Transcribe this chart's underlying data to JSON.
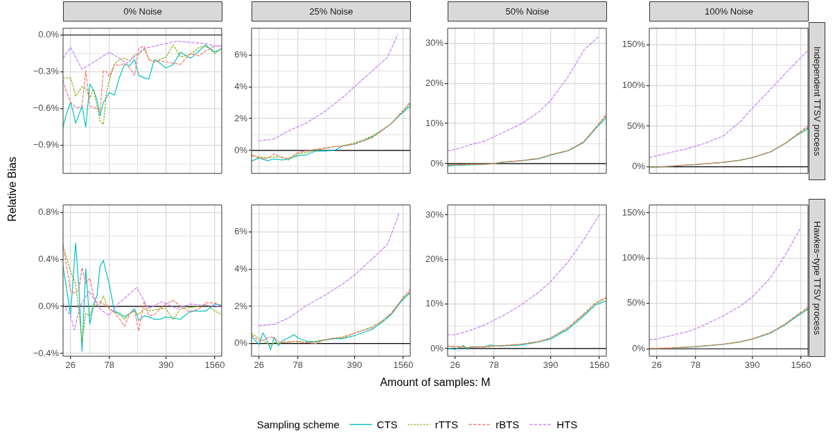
{
  "chart_data": [
    {
      "type": "line",
      "title": "0% Noise",
      "ylabel": "Relative Bias",
      "legend_title": "Sampling scheme",
      "legend": "bottom",
      "grid": true,
      "log": "x",
      "tick_labels": "y",
      "xlim": [
        21,
        1900
      ],
      "xticks": [
        26,
        {
          "value": 45,
          "label": null
        },
        78,
        {
          "value": 174,
          "label": null
        },
        390,
        {
          "value": 780,
          "label": null
        },
        1560
      ],
      "ylim": [
        -1.13,
        0.055
      ],
      "yticks": [
        {
          "value": -1.05,
          "label": null
        },
        {
          "value": -0.9,
          "label": "−0.9%"
        },
        {
          "value": -0.75,
          "label": null
        },
        {
          "value": -0.6,
          "label": "−0.6%"
        },
        {
          "value": -0.45,
          "label": null
        },
        {
          "value": -0.3,
          "label": "−0.3%"
        },
        {
          "value": -0.15,
          "label": null
        },
        {
          "value": 0,
          "label": "0.0%"
        }
      ],
      "ref_lines": [
        {
          "axis": "y",
          "value": 0,
          "color": "#000000"
        }
      ],
      "x": [
        21,
        23,
        26,
        28,
        30,
        33,
        36,
        40,
        45,
        50,
        55,
        60,
        66,
        72,
        78,
        90,
        105,
        120,
        140,
        160,
        180,
        210,
        240,
        280,
        330,
        390,
        480,
        590,
        780,
        1000,
        1200,
        1560,
        1900
      ],
      "series": [
        {
          "name": "CTS",
          "color": "#00bfc4",
          "line_style": "solid",
          "values": [
            -0.75,
            -0.65,
            -0.55,
            -0.63,
            -0.72,
            -0.65,
            -0.58,
            -0.75,
            -0.4,
            -0.45,
            -0.53,
            -0.66,
            -0.55,
            -0.51,
            -0.47,
            -0.49,
            -0.34,
            -0.24,
            -0.25,
            -0.2,
            -0.33,
            -0.35,
            -0.36,
            -0.2,
            -0.23,
            -0.27,
            -0.24,
            -0.14,
            -0.19,
            -0.13,
            -0.08,
            -0.14,
            -0.11
          ]
        },
        {
          "name": "rTTS",
          "color": "#7cae00",
          "line_style": "dotted",
          "values": [
            -0.35,
            -0.35,
            -0.35,
            -0.42,
            -0.5,
            -0.46,
            -0.42,
            -0.44,
            -0.51,
            -0.44,
            -0.58,
            -0.7,
            -0.73,
            -0.47,
            -0.37,
            -0.24,
            -0.2,
            -0.19,
            -0.21,
            -0.16,
            -0.16,
            -0.11,
            -0.2,
            -0.22,
            -0.2,
            -0.18,
            -0.08,
            -0.18,
            -0.16,
            -0.1,
            -0.09,
            -0.15,
            -0.11
          ]
        },
        {
          "name": "rBTS",
          "color": "#f8766d",
          "line_style": "dashed",
          "values": [
            -0.37,
            -0.46,
            -0.55,
            -0.57,
            -0.59,
            -0.59,
            -0.58,
            -0.29,
            -0.58,
            -0.59,
            -0.6,
            -0.62,
            -0.29,
            -0.3,
            -0.34,
            -0.24,
            -0.25,
            -0.23,
            -0.27,
            -0.33,
            -0.11,
            -0.09,
            -0.2,
            -0.22,
            -0.21,
            -0.22,
            -0.23,
            -0.24,
            -0.15,
            -0.17,
            -0.13,
            -0.09,
            -0.09
          ]
        },
        {
          "name": "HTS",
          "color": "#c77cff",
          "line_style": "dashed",
          "x": [
            21,
            26,
            36,
            78,
            130,
            210,
            530,
            780,
            1200,
            1560,
            1900
          ],
          "values": [
            -0.19,
            -0.1,
            -0.28,
            -0.14,
            -0.23,
            -0.11,
            -0.05,
            -0.06,
            -0.07,
            -0.09,
            -0.09
          ]
        }
      ]
    },
    {
      "type": "line",
      "title": "25% Noise",
      "grid": true,
      "log": "x",
      "tick_labels": "y",
      "xlim": [
        21,
        1900
      ],
      "xticks": [
        26,
        {
          "value": 45,
          "label": null
        },
        78,
        {
          "value": 174,
          "label": null
        },
        390,
        {
          "value": 780,
          "label": null
        },
        1560
      ],
      "ylim": [
        -1.44,
        7.67
      ],
      "yticks": [
        {
          "value": -1,
          "label": null
        },
        {
          "value": 0,
          "label": "0%"
        },
        {
          "value": 1,
          "label": null
        },
        {
          "value": 2,
          "label": "2%"
        },
        {
          "value": 3,
          "label": null
        },
        {
          "value": 4,
          "label": "4%"
        },
        {
          "value": 5,
          "label": null
        },
        {
          "value": 6,
          "label": "6%"
        },
        {
          "value": 7,
          "label": null
        }
      ],
      "ref_lines": [
        {
          "axis": "y",
          "value": 0,
          "color": "#000000"
        }
      ],
      "x": [
        21,
        26,
        33,
        40,
        50,
        60,
        78,
        100,
        130,
        170,
        220,
        280,
        390,
        500,
        650,
        850,
        1100,
        1400,
        1560,
        1900
      ],
      "series": [
        {
          "color": "#00bfc4",
          "line_style": "solid",
          "values": [
            -0.67,
            -0.47,
            -0.64,
            -0.53,
            -0.6,
            -0.53,
            -0.33,
            -0.27,
            -0.03,
            -0.03,
            0,
            0.29,
            0.4,
            0.6,
            0.87,
            1.27,
            1.67,
            2.2,
            2.4,
            2.8
          ]
        },
        {
          "color": "#7cae00",
          "line_style": "dotted",
          "values": [
            -0.27,
            -0.4,
            -0.47,
            -0.4,
            -0.4,
            -0.6,
            -0.2,
            -0.13,
            0.03,
            0.13,
            0.24,
            0.29,
            0.47,
            0.67,
            0.91,
            1.27,
            1.67,
            2.24,
            2.47,
            2.93
          ]
        },
        {
          "color": "#f8766d",
          "line_style": "dashed",
          "values": [
            -0.33,
            -0.47,
            -0.51,
            -0.2,
            -0.47,
            -0.51,
            -0.13,
            -0.03,
            0.07,
            0.16,
            0.24,
            0.27,
            0.4,
            0.6,
            0.8,
            1.23,
            1.67,
            2.27,
            2.53,
            3.04
          ]
        },
        {
          "color": "#c77cff",
          "line_style": "dashed",
          "x": [
            26,
            40,
            60,
            100,
            170,
            280,
            390,
            650,
            1000,
            1330
          ],
          "values": [
            0.6,
            0.73,
            1.23,
            1.73,
            2.47,
            3.33,
            4.0,
            5.0,
            5.87,
            7.27
          ]
        }
      ]
    },
    {
      "type": "line",
      "title": "50% Noise",
      "grid": true,
      "log": "x",
      "tick_labels": "y",
      "xlim": [
        21,
        1900
      ],
      "xticks": [
        26,
        {
          "value": 45,
          "label": null
        },
        78,
        {
          "value": 174,
          "label": null
        },
        390,
        {
          "value": 780,
          "label": null
        },
        1560
      ],
      "ylim": [
        -2.44,
        33.7
      ],
      "yticks": [
        {
          "value": 0,
          "label": "0%"
        },
        {
          "value": 5,
          "label": null
        },
        {
          "value": 10,
          "label": "10%"
        },
        {
          "value": 15,
          "label": null
        },
        {
          "value": 20,
          "label": "20%"
        },
        {
          "value": 25,
          "label": null
        },
        {
          "value": 30,
          "label": "30%"
        }
      ],
      "ref_lines": [
        {
          "axis": "y",
          "value": 0,
          "color": "#000000"
        }
      ],
      "x": [
        21,
        26,
        40,
        60,
        78,
        100,
        170,
        280,
        390,
        650,
        1000,
        1400,
        1900
      ],
      "series": [
        {
          "color": "#00bfc4",
          "line_style": "solid",
          "values": [
            -0.6,
            -0.45,
            -0.3,
            -0.2,
            0.0,
            0.35,
            0.7,
            1.2,
            2.1,
            3.2,
            5.3,
            8.7,
            11.4
          ]
        },
        {
          "color": "#7cae00",
          "line_style": "dotted",
          "values": [
            -0.4,
            -0.3,
            -0.2,
            -0.15,
            0.0,
            0.4,
            0.75,
            1.3,
            2.2,
            3.3,
            5.4,
            8.9,
            11.9
          ]
        },
        {
          "color": "#f8766d",
          "line_style": "dashed",
          "values": [
            -0.3,
            -0.3,
            -0.2,
            -0.15,
            0.0,
            0.4,
            0.75,
            1.3,
            2.2,
            3.3,
            5.5,
            9.0,
            12.3
          ]
        },
        {
          "color": "#c77cff",
          "line_style": "dashed",
          "x": [
            21,
            26,
            40,
            60,
            100,
            170,
            280,
            390,
            650,
            1000,
            1500
          ],
          "values": [
            3.2,
            3.5,
            4.7,
            5.6,
            7.7,
            9.9,
            12.9,
            15.7,
            21.8,
            28.2,
            31.5
          ]
        }
      ]
    },
    {
      "type": "line",
      "title": "100% Noise",
      "annotations": [
        "Independent TTSV process"
      ],
      "grid": true,
      "log": "x",
      "tick_labels": "y",
      "xlim": [
        21,
        1900
      ],
      "xticks": [
        26,
        {
          "value": 45,
          "label": null
        },
        78,
        {
          "value": 174,
          "label": null
        },
        390,
        {
          "value": 780,
          "label": null
        },
        1560
      ],
      "ylim": [
        -8.1,
        170.5
      ],
      "yticks": [
        {
          "value": 0,
          "label": "0%"
        },
        {
          "value": 25,
          "label": null
        },
        {
          "value": 50,
          "label": "50%"
        },
        {
          "value": 75,
          "label": null
        },
        {
          "value": 100,
          "label": "100%"
        },
        {
          "value": 125,
          "label": null
        },
        {
          "value": 150,
          "label": "150%"
        }
      ],
      "ref_lines": [
        {
          "axis": "y",
          "value": 0,
          "color": "#000000"
        }
      ],
      "x": [
        21,
        26,
        40,
        60,
        78,
        100,
        170,
        280,
        390,
        650,
        1000,
        1400,
        1900
      ],
      "series": [
        {
          "color": "#00bfc4",
          "line_style": "solid",
          "values": [
            -0.5,
            -0.3,
            0.8,
            2.0,
            2.7,
            3.6,
            5.4,
            8.1,
            11.2,
            18.1,
            28.7,
            39.2,
            46.8
          ]
        },
        {
          "color": "#7cae00",
          "line_style": "dotted",
          "values": [
            -0.3,
            -0.2,
            0.9,
            2.1,
            2.8,
            3.7,
            5.5,
            8.2,
            11.4,
            18.3,
            29.0,
            39.8,
            48.3
          ]
        },
        {
          "color": "#f8766d",
          "line_style": "dashed",
          "values": [
            0.0,
            0.0,
            1.0,
            2.2,
            2.9,
            3.8,
            5.6,
            8.3,
            11.5,
            18.5,
            29.2,
            40.2,
            50.4
          ]
        },
        {
          "color": "#c77cff",
          "line_style": "dashed",
          "x": [
            21,
            26,
            40,
            60,
            100,
            170,
            280,
            390,
            650,
            1000,
            1400,
            1900
          ],
          "values": [
            11.2,
            13.6,
            18.1,
            22.0,
            28.7,
            37.7,
            55.8,
            72,
            95,
            115,
            130,
            143
          ]
        }
      ]
    },
    {
      "type": "line",
      "grid": true,
      "log": "x",
      "xlim": [
        21,
        1900
      ],
      "xticks": [
        26,
        {
          "value": 45,
          "label": null
        },
        78,
        {
          "value": 174,
          "label": null
        },
        390,
        {
          "value": 780,
          "label": null
        },
        1560
      ],
      "ylim": [
        -0.424,
        0.862
      ],
      "yticks": [
        {
          "value": -0.4,
          "label": "−0.4%"
        },
        {
          "value": -0.2,
          "label": null
        },
        {
          "value": 0,
          "label": "0.0%"
        },
        {
          "value": 0.2,
          "label": null
        },
        {
          "value": 0.4,
          "label": "0.4%"
        },
        {
          "value": 0.6,
          "label": null
        },
        {
          "value": 0.8,
          "label": "0.8%"
        }
      ],
      "ref_lines": [
        {
          "axis": "y",
          "value": 0,
          "color": "#000000"
        }
      ],
      "x": [
        21,
        26,
        30,
        33,
        36,
        40,
        45,
        50,
        55,
        60,
        66,
        72,
        78,
        90,
        105,
        120,
        140,
        160,
        180,
        210,
        240,
        280,
        330,
        390,
        480,
        590,
        780,
        1000,
        1200,
        1560,
        1900
      ],
      "series": [
        {
          "color": "#00bfc4",
          "line_style": "solid",
          "values": [
            0.34,
            -0.07,
            0.54,
            0.15,
            -0.38,
            0.32,
            -0.15,
            0.02,
            0.09,
            0.34,
            0.39,
            0.28,
            0.19,
            -0.04,
            -0.06,
            -0.09,
            -0.06,
            -0.02,
            -0.12,
            -0.08,
            -0.09,
            -0.11,
            -0.11,
            -0.09,
            -0.1,
            -0.11,
            -0.04,
            -0.04,
            -0.04,
            0.02,
            0.01
          ]
        },
        {
          "color": "#7cae00",
          "line_style": "dotted",
          "values": [
            0.51,
            0.3,
            0.19,
            -0.04,
            -0.3,
            -0.06,
            -0.08,
            0.02,
            0.01,
            0.02,
            0.09,
            0.02,
            -0.02,
            -0.05,
            -0.07,
            -0.11,
            -0.06,
            -0.04,
            -0.07,
            -0.02,
            -0.04,
            -0.03,
            -0.02,
            -0.02,
            -0.11,
            -0.02,
            -0.01,
            0.0,
            0.02,
            -0.04,
            -0.07
          ]
        },
        {
          "color": "#f8766d",
          "line_style": "dashed",
          "values": [
            0.53,
            0.13,
            0.11,
            0.15,
            0.33,
            0.2,
            0.24,
            0.08,
            0.03,
            0.04,
            0.02,
            0.01,
            -0.02,
            -0.05,
            -0.11,
            -0.17,
            -0.06,
            -0.04,
            -0.21,
            0.04,
            -0.08,
            -0.07,
            -0.02,
            0.02,
            0.05,
            0.0,
            -0.05,
            -0.02,
            0.03,
            0.03,
            0.0
          ]
        },
        {
          "color": "#c77cff",
          "line_style": "dashed",
          "x": [
            21,
            26,
            29,
            34,
            44,
            60,
            77,
            100,
            170,
            236,
            350,
            530,
            780,
            1150,
            1900
          ],
          "values": [
            0.02,
            -0.08,
            -0.2,
            0.0,
            0.13,
            -0.02,
            -0.08,
            0.02,
            0.16,
            -0.02,
            0.04,
            -0.02,
            0.02,
            0.01,
            0.0
          ]
        }
      ]
    },
    {
      "type": "line",
      "xlabel": "Amount of samples: M",
      "grid": true,
      "log": "x",
      "xlim": [
        21,
        1900
      ],
      "xticks": [
        26,
        {
          "value": 45,
          "label": null
        },
        78,
        {
          "value": 174,
          "label": null
        },
        390,
        {
          "value": 780,
          "label": null
        },
        1560
      ],
      "ylim": [
        -0.69,
        7.46
      ],
      "yticks": [
        {
          "value": 0,
          "label": "0%"
        },
        {
          "value": 1,
          "label": null
        },
        {
          "value": 2,
          "label": "2%"
        },
        {
          "value": 3,
          "label": null
        },
        {
          "value": 4,
          "label": "4%"
        },
        {
          "value": 5,
          "label": null
        },
        {
          "value": 6,
          "label": "6%"
        },
        {
          "value": 7,
          "label": null
        }
      ],
      "ref_lines": [
        {
          "axis": "y",
          "value": 0,
          "color": "#000000"
        }
      ],
      "x": [
        21,
        26,
        29,
        33,
        36,
        40,
        45,
        50,
        60,
        70,
        78,
        100,
        130,
        170,
        220,
        280,
        390,
        500,
        650,
        850,
        1100,
        1400,
        1560,
        1900
      ],
      "series": [
        {
          "color": "#00bfc4",
          "line_style": "solid",
          "values": [
            0.36,
            -0.06,
            0.57,
            0.12,
            -0.36,
            0.33,
            -0.12,
            0.12,
            0.3,
            0.48,
            0.3,
            0.12,
            0.08,
            0.18,
            0.26,
            0.26,
            0.42,
            0.59,
            0.77,
            1.13,
            1.54,
            2.14,
            2.38,
            2.73
          ]
        },
        {
          "color": "#7cae00",
          "line_style": "dotted",
          "values": [
            0.55,
            0.25,
            0.15,
            0.0,
            -0.12,
            0.05,
            0.0,
            0.05,
            0.05,
            0.1,
            0.12,
            0.05,
            0.12,
            0.2,
            0.28,
            0.35,
            0.55,
            0.72,
            0.9,
            1.2,
            1.6,
            2.2,
            2.45,
            2.8
          ]
        },
        {
          "color": "#f8766d",
          "line_style": "dashed",
          "values": [
            0.45,
            0.12,
            0.15,
            0.3,
            0.33,
            0.3,
            0.1,
            0.05,
            0.1,
            0.1,
            0.08,
            0.05,
            0.0,
            0.2,
            0.3,
            0.3,
            0.55,
            0.7,
            0.85,
            1.2,
            1.62,
            2.2,
            2.5,
            2.9
          ]
        },
        {
          "color": "#c77cff",
          "line_style": "dashed",
          "x": [
            26,
            40,
            60,
            100,
            170,
            280,
            390,
            650,
            1000,
            1400
          ],
          "values": [
            0.95,
            1.03,
            1.37,
            2.04,
            2.61,
            3.21,
            3.68,
            4.57,
            5.34,
            7.07
          ]
        }
      ]
    },
    {
      "type": "line",
      "grid": true,
      "log": "x",
      "xlim": [
        21,
        1900
      ],
      "xticks": [
        26,
        {
          "value": 45,
          "label": null
        },
        78,
        {
          "value": 174,
          "label": null
        },
        390,
        {
          "value": 780,
          "label": null
        },
        1560
      ],
      "ylim": [
        -1.72,
        32.2
      ],
      "yticks": [
        {
          "value": 0,
          "label": "0%"
        },
        {
          "value": 5,
          "label": null
        },
        {
          "value": 10,
          "label": "10%"
        },
        {
          "value": 15,
          "label": null
        },
        {
          "value": 20,
          "label": "20%"
        },
        {
          "value": 25,
          "label": null
        },
        {
          "value": 30,
          "label": "30%"
        }
      ],
      "ref_lines": [
        {
          "axis": "y",
          "value": 0,
          "color": "#000000"
        }
      ],
      "x": [
        21,
        26,
        33,
        36,
        40,
        60,
        70,
        78,
        100,
        170,
        280,
        390,
        650,
        1000,
        1400,
        1900
      ],
      "series": [
        {
          "color": "#00bfc4",
          "line_style": "solid",
          "values": [
            0.1,
            -0.2,
            0.7,
            -0.2,
            0.4,
            0.4,
            0.8,
            0.7,
            0.6,
            0.8,
            1.5,
            2.1,
            4.4,
            7.3,
            9.8,
            10.7
          ]
        },
        {
          "color": "#7cae00",
          "line_style": "dotted",
          "values": [
            0.6,
            0.4,
            0.3,
            0.2,
            0.3,
            0.3,
            0.5,
            0.6,
            0.6,
            1.0,
            1.5,
            2.4,
            4.7,
            7.6,
            10.1,
            11.3
          ]
        },
        {
          "color": "#f8766d",
          "line_style": "dashed",
          "values": [
            0.5,
            0.5,
            0.4,
            0.3,
            0.3,
            0.4,
            0.5,
            0.6,
            0.7,
            1.0,
            1.6,
            2.4,
            4.8,
            7.8,
            10.3,
            11.5
          ]
        },
        {
          "color": "#c77cff",
          "line_style": "dashed",
          "x": [
            21,
            26,
            40,
            60,
            100,
            170,
            280,
            390,
            650,
            1000,
            1560
          ],
          "values": [
            3.1,
            3.1,
            4.1,
            5.3,
            7.3,
            9.8,
            12.7,
            15.0,
            19.6,
            24.4,
            30.0
          ]
        }
      ]
    },
    {
      "type": "line",
      "annotations": [
        "Hawkes−type TTSV process"
      ],
      "grid": true,
      "log": "x",
      "xlim": [
        21,
        1900
      ],
      "xticks": [
        26,
        {
          "value": 45,
          "label": null
        },
        78,
        {
          "value": 174,
          "label": null
        },
        390,
        {
          "value": 780,
          "label": null
        },
        1560
      ],
      "ylim": [
        -8.2,
        158.5
      ],
      "yticks": [
        {
          "value": 0,
          "label": "0%"
        },
        {
          "value": 25,
          "label": null
        },
        {
          "value": 50,
          "label": "50%"
        },
        {
          "value": 75,
          "label": null
        },
        {
          "value": 100,
          "label": "100%"
        },
        {
          "value": 125,
          "label": null
        },
        {
          "value": 150,
          "label": "150%"
        }
      ],
      "ref_lines": [
        {
          "axis": "y",
          "value": 0,
          "color": "#000000"
        }
      ],
      "x": [
        21,
        26,
        40,
        60,
        78,
        100,
        170,
        280,
        390,
        650,
        1000,
        1400,
        1900
      ],
      "series": [
        {
          "color": "#00bfc4",
          "line_style": "solid",
          "values": [
            null,
            null,
            0.8,
            1.6,
            2.2,
            3.0,
            4.8,
            7.5,
            10.5,
            17.0,
            26.5,
            36.0,
            43.5
          ]
        },
        {
          "color": "#7cae00",
          "line_style": "dotted",
          "values": [
            0.3,
            0.3,
            1.0,
            1.8,
            2.4,
            3.2,
            5.0,
            7.8,
            10.8,
            17.5,
            27.2,
            37.0,
            44.8
          ]
        },
        {
          "color": "#f8766d",
          "line_style": "dashed",
          "values": [
            0.5,
            0.5,
            1.1,
            1.9,
            2.5,
            3.3,
            5.1,
            7.9,
            11.0,
            17.8,
            27.5,
            37.5,
            46.0
          ]
        },
        {
          "color": "#c77cff",
          "line_style": "dashed",
          "x": [
            21,
            26,
            40,
            60,
            78,
            100,
            170,
            280,
            390,
            650,
            1000,
            1510
          ],
          "values": [
            9.9,
            10.7,
            14.9,
            18.6,
            22,
            26.2,
            36,
            47.3,
            57,
            78,
            103.6,
            131.7
          ]
        }
      ]
    }
  ]
}
